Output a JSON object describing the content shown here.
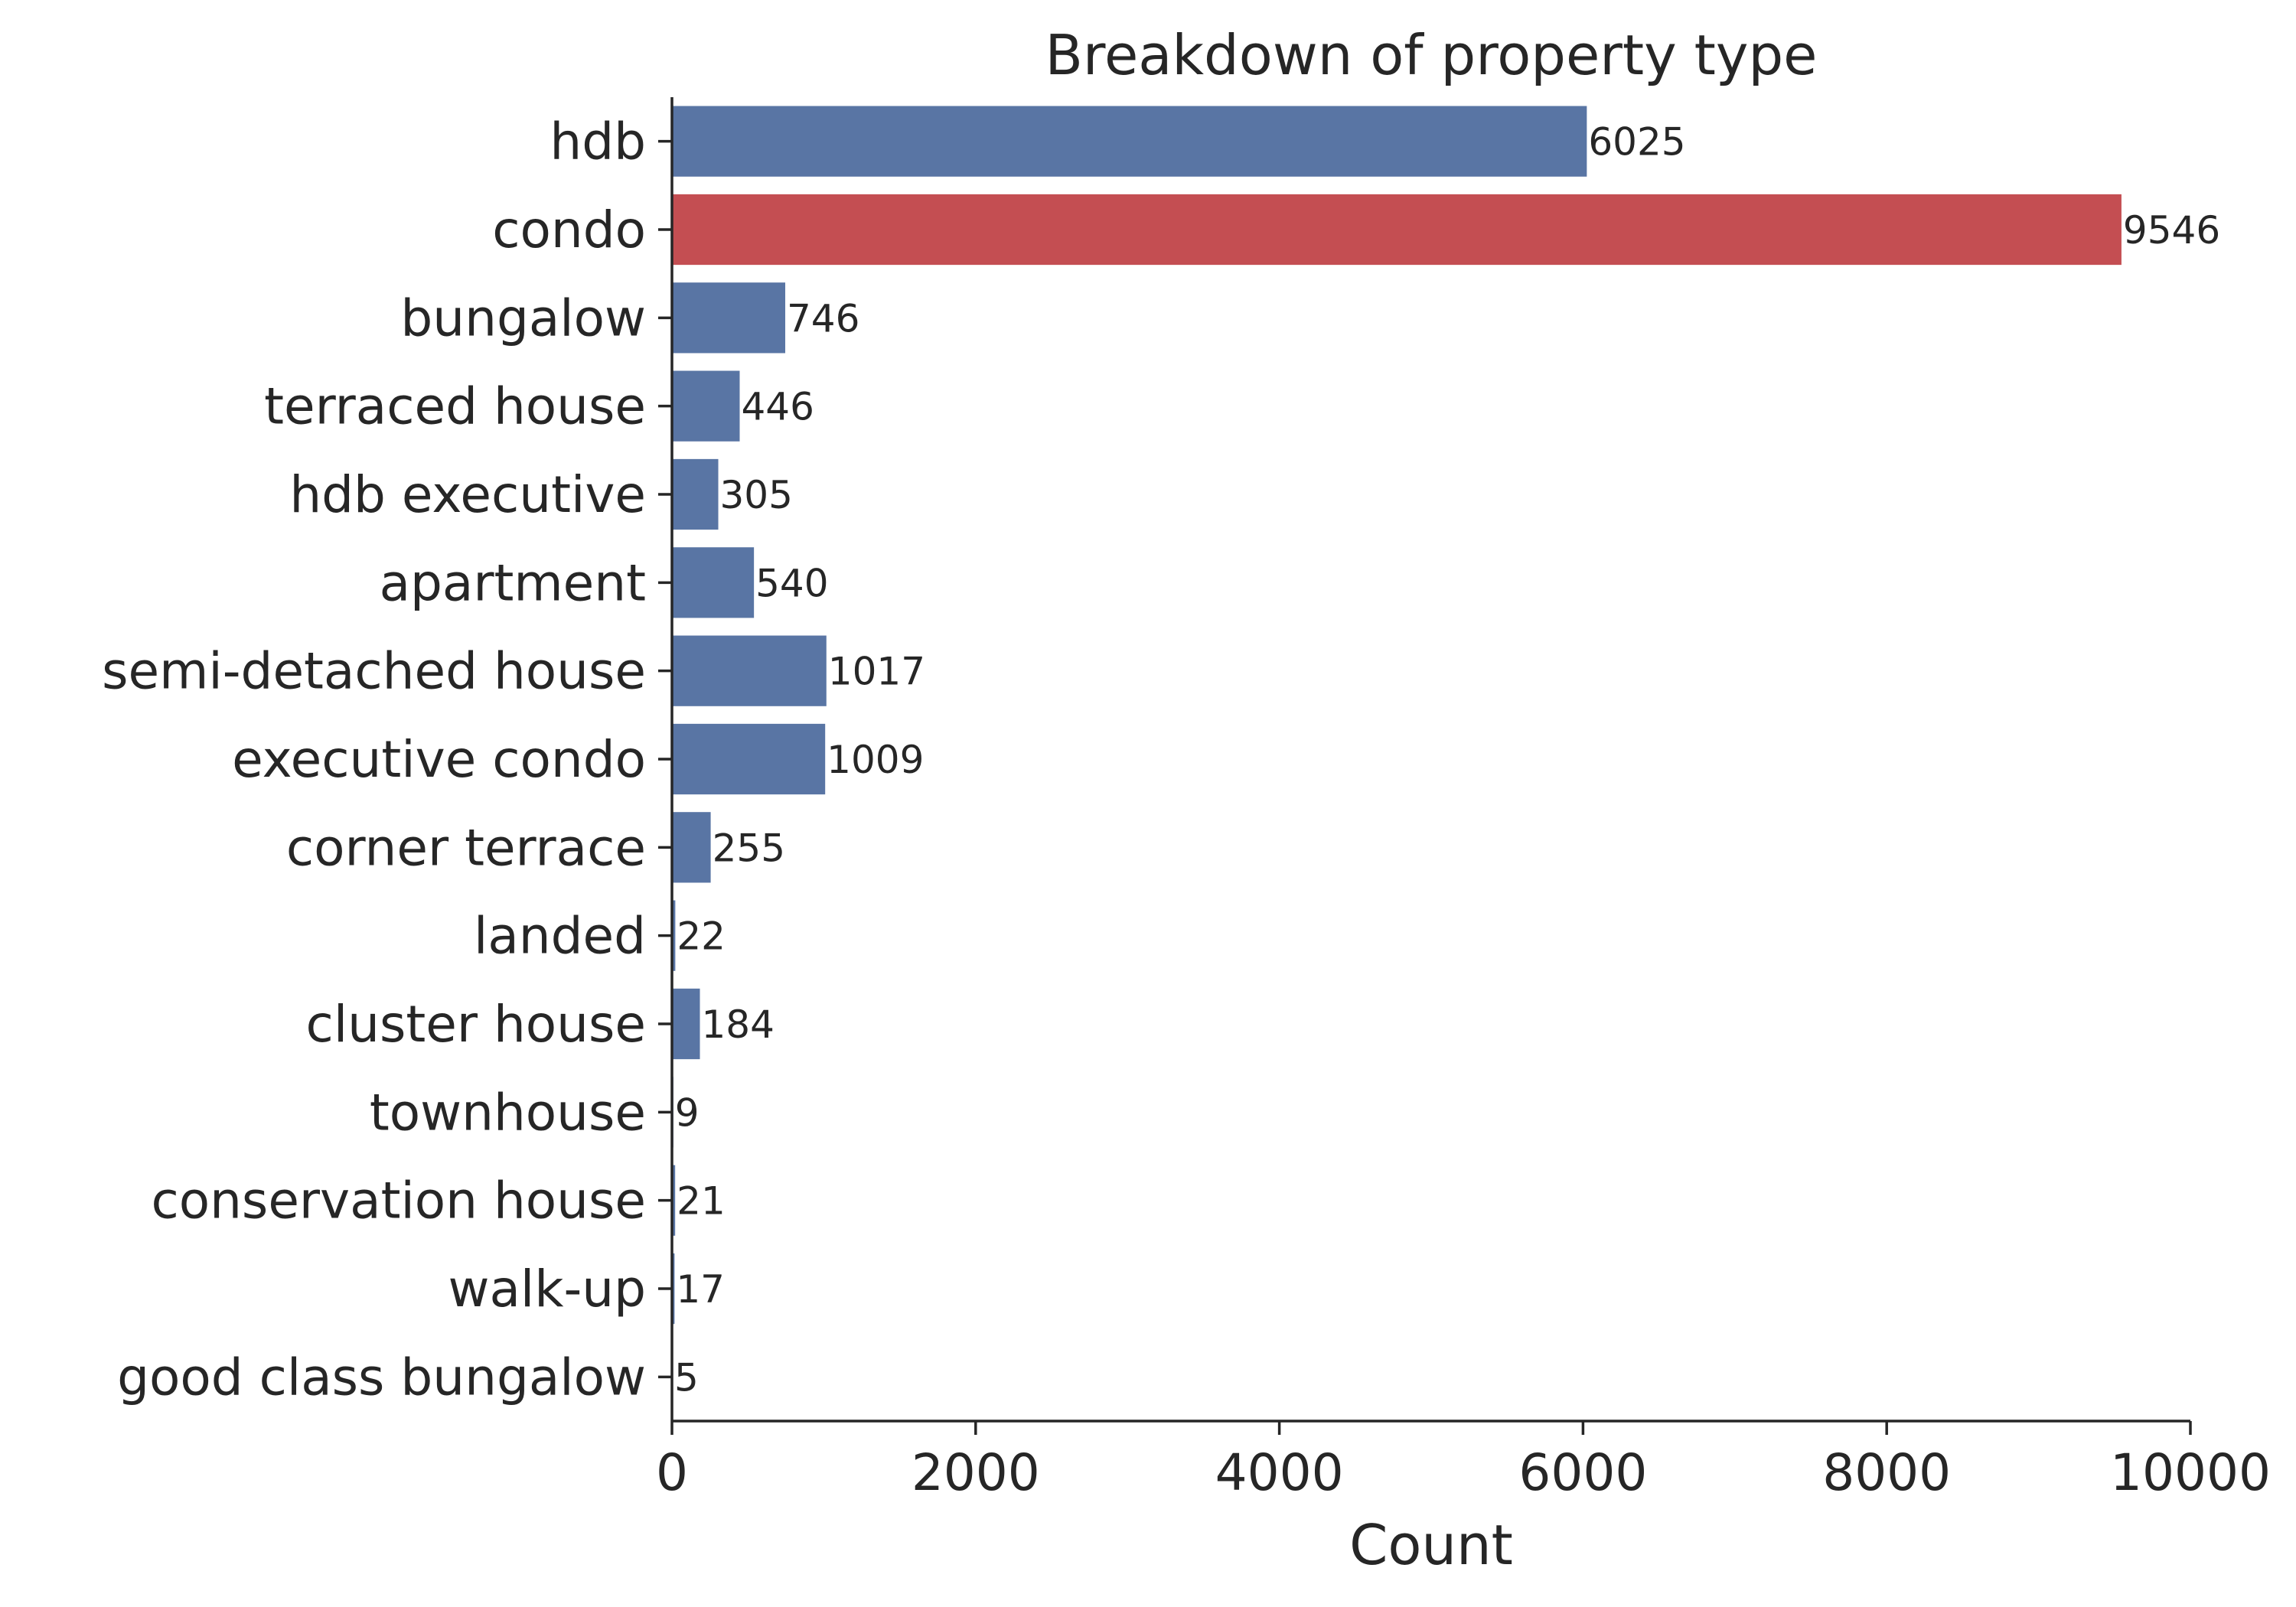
{
  "chart_data": {
    "type": "bar",
    "orientation": "horizontal",
    "title": "Breakdown of property type",
    "xlabel": "Count",
    "ylabel": "",
    "xlim": [
      0,
      10000
    ],
    "xticks": [
      0,
      2000,
      4000,
      6000,
      8000,
      10000
    ],
    "xtick_labels": [
      "0",
      "2000",
      "4000",
      "6000",
      "8000",
      "10000"
    ],
    "categories": [
      "hdb",
      "condo",
      "bungalow",
      "terraced house",
      "hdb executive",
      "apartment",
      "semi-detached house",
      "executive condo",
      "corner terrace",
      "landed",
      "cluster house",
      "townhouse",
      "conservation house",
      "walk-up",
      "good class bungalow"
    ],
    "values": [
      6025,
      9546,
      746,
      446,
      305,
      540,
      1017,
      1009,
      255,
      22,
      184,
      9,
      21,
      17,
      5
    ],
    "data_labels": [
      "6025",
      "9546",
      "746",
      "446",
      "305",
      "540",
      "1017",
      "1009",
      "255",
      "22",
      "184",
      "9",
      "21",
      "17",
      "5"
    ],
    "bar_colors": [
      "#5975a4",
      "#c44e52",
      "#5975a4",
      "#5975a4",
      "#5975a4",
      "#5975a4",
      "#5975a4",
      "#5975a4",
      "#5975a4",
      "#5975a4",
      "#5975a4",
      "#5975a4",
      "#5975a4",
      "#5975a4",
      "#5975a4"
    ],
    "highlight_category": "condo",
    "grid": false,
    "legend": "none"
  }
}
